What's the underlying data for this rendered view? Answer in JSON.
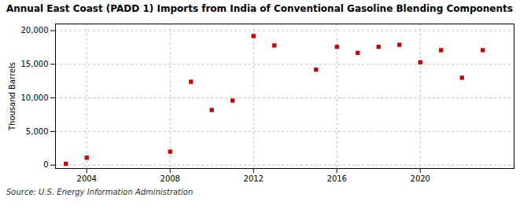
{
  "chart_data": {
    "type": "scatter",
    "title": "Annual East Coast (PADD 1) Imports from India of Conventional Gasoline Blending Components",
    "ylabel": "Thousand Barrels",
    "source": "Source: U.S. Energy Information Administration",
    "x": [
      2003,
      2004,
      2008,
      2009,
      2010,
      2011,
      2012,
      2013,
      2015,
      2016,
      2017,
      2018,
      2019,
      2020,
      2021,
      2022,
      2023
    ],
    "values": [
      200,
      1100,
      2000,
      12400,
      8200,
      9600,
      19200,
      17800,
      14200,
      17600,
      16700,
      17600,
      17900,
      15300,
      17100,
      13000,
      17100
    ],
    "color": "#cc0000",
    "marker": "square",
    "xlim": [
      2002.5,
      2024.5
    ],
    "ylim": [
      -500,
      21000
    ],
    "xticks": [
      2004,
      2008,
      2012,
      2016,
      2020
    ],
    "yticks": [
      0,
      {
        "value": 5000,
        "label": "5,000"
      },
      {
        "value": 10000,
        "label": "10,000"
      },
      {
        "value": 15000,
        "label": "15,000"
      },
      {
        "value": 20000,
        "label": "20,000"
      }
    ],
    "grid": true
  }
}
